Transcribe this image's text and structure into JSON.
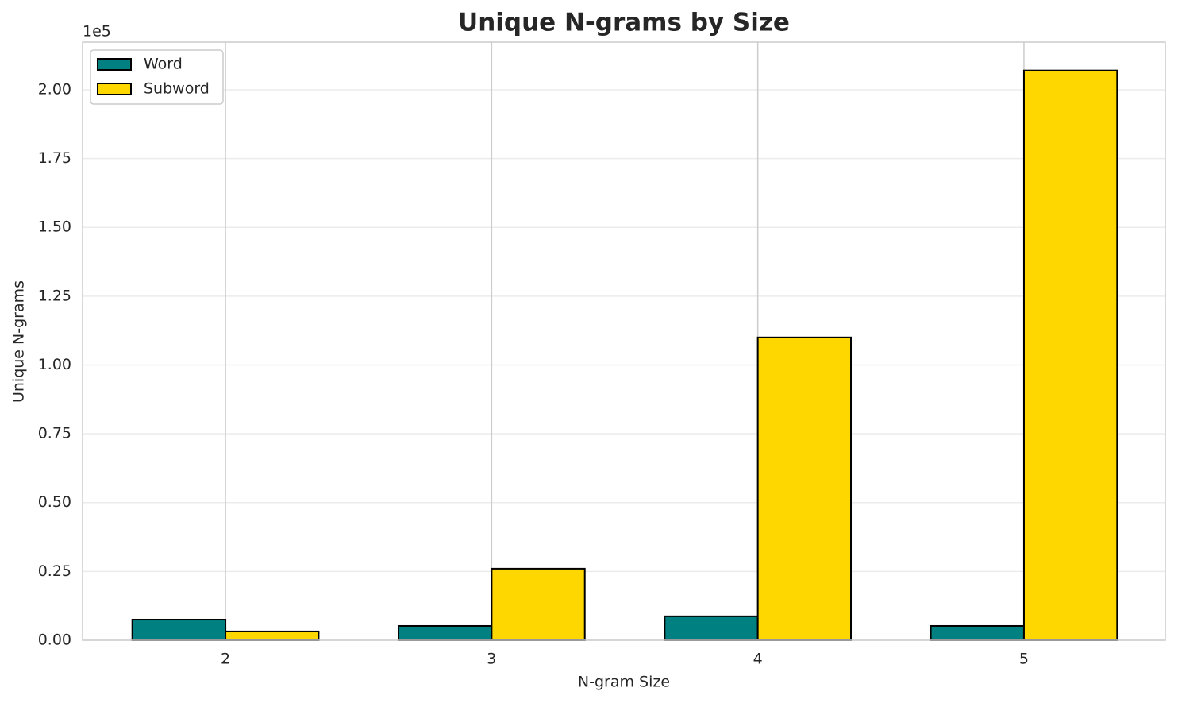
{
  "chart_data": {
    "type": "bar",
    "title": "Unique N-grams by Size",
    "x_label": "N-gram Size",
    "y_label": "Unique N-grams",
    "y_offset_label": "1e5",
    "x": [
      2,
      3,
      4,
      5
    ],
    "xlim": [
      1.463,
      5.531
    ],
    "xticks": [
      2,
      3,
      4,
      5
    ],
    "ylim": [
      0,
      217300
    ],
    "yticks": [
      {
        "value": 0,
        "label": "0.00"
      },
      {
        "value": 25000,
        "label": "0.25"
      },
      {
        "value": 50000,
        "label": "0.50"
      },
      {
        "value": 75000,
        "label": "0.75"
      },
      {
        "value": 100000,
        "label": "1.00"
      },
      {
        "value": 125000,
        "label": "1.25"
      },
      {
        "value": 150000,
        "label": "1.50"
      },
      {
        "value": 175000,
        "label": "1.75"
      },
      {
        "value": 200000,
        "label": "2.00"
      }
    ],
    "grid": true,
    "legend": "upper-left",
    "series": [
      {
        "name": "Word",
        "color": "#008080",
        "values": [
          7500,
          5200,
          8700,
          5200
        ]
      },
      {
        "name": "Subword",
        "color": "#ffd700",
        "values": [
          3200,
          26000,
          110000,
          207000
        ]
      }
    ]
  }
}
